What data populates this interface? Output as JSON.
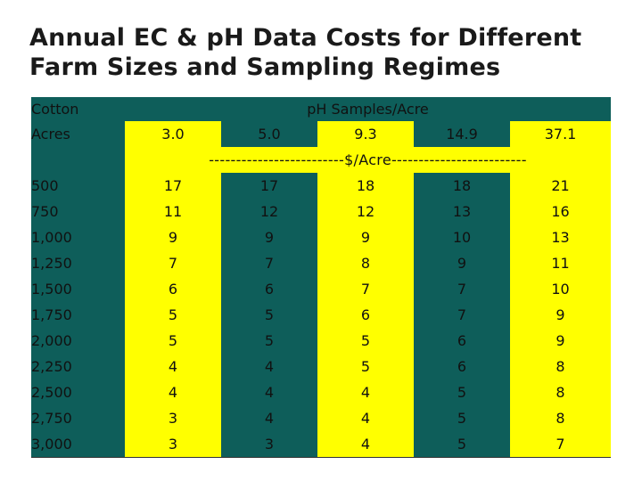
{
  "title": {
    "line1": "Annual EC & pH Data Costs for Different",
    "line2": "Farm Sizes and Sampling Regimes"
  },
  "header": {
    "crop_label": "Cotton",
    "group_title": "pH Samples/Acre",
    "acres_label": "Acres",
    "sample_rates": [
      "3.0",
      "5.0",
      "9.3",
      "14.9",
      "37.1"
    ],
    "unit_line": "-------------------------$/Acre-------------------------"
  },
  "rows": [
    {
      "acres": "500",
      "costs": [
        "17",
        "17",
        "18",
        "18",
        "21"
      ]
    },
    {
      "acres": "750",
      "costs": [
        "11",
        "12",
        "12",
        "13",
        "16"
      ]
    },
    {
      "acres": "1,000",
      "costs": [
        "9",
        "9",
        "9",
        "10",
        "13"
      ]
    },
    {
      "acres": "1,250",
      "costs": [
        "7",
        "7",
        "8",
        "9",
        "11"
      ]
    },
    {
      "acres": "1,500",
      "costs": [
        "6",
        "6",
        "7",
        "7",
        "10"
      ]
    },
    {
      "acres": "1,750",
      "costs": [
        "5",
        "5",
        "6",
        "7",
        "9"
      ]
    },
    {
      "acres": "2,000",
      "costs": [
        "5",
        "5",
        "5",
        "6",
        "9"
      ]
    },
    {
      "acres": "2,250",
      "costs": [
        "4",
        "4",
        "5",
        "6",
        "8"
      ]
    },
    {
      "acres": "2,500",
      "costs": [
        "4",
        "4",
        "4",
        "5",
        "8"
      ]
    },
    {
      "acres": "2,750",
      "costs": [
        "3",
        "4",
        "4",
        "5",
        "8"
      ]
    },
    {
      "acres": "3,000",
      "costs": [
        "3",
        "3",
        "4",
        "5",
        "7"
      ]
    }
  ],
  "colors": {
    "dark": "#0e5e5a",
    "highlight": "#ffff00"
  }
}
